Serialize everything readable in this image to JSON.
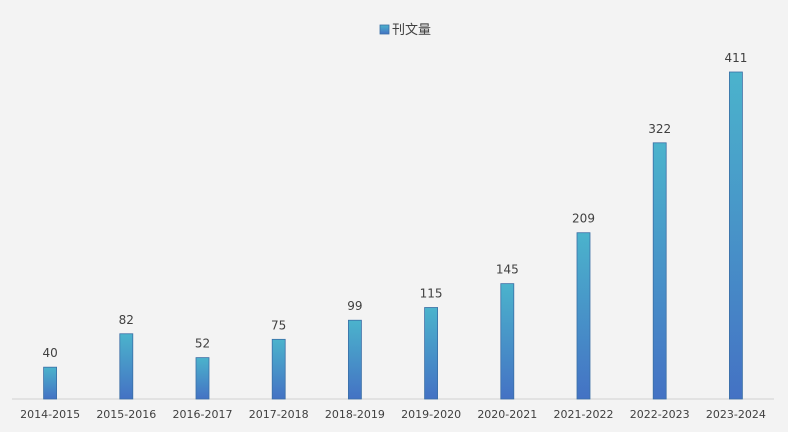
{
  "chart_data": {
    "type": "bar",
    "categories": [
      "2014-2015",
      "2015-2016",
      "2016-2017",
      "2017-2018",
      "2018-2019",
      "2019-2020",
      "2020-2021",
      "2021-2022",
      "2022-2023",
      "2023-2024"
    ],
    "series": [
      {
        "name": "刊文量",
        "values": [
          40,
          82,
          52,
          75,
          99,
          115,
          145,
          209,
          322,
          411
        ]
      }
    ],
    "ylim": [
      0,
      411
    ],
    "grid": false,
    "legend_position": "top-center",
    "data_labels": true,
    "colors": {
      "bar_top": "#4bb3cc",
      "bar_bottom": "#4472c4",
      "axis": "#d0d0d0",
      "text": "#404040"
    }
  }
}
